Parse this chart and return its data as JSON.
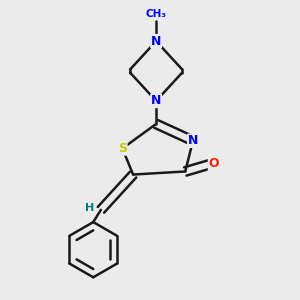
{
  "background_color": "#ebebeb",
  "bond_color": "#1a1a1a",
  "bond_width": 1.8,
  "atom_colors": {
    "N": "#0000ff",
    "S": "#cccc00",
    "O": "#ff2200",
    "H": "#008080",
    "C": "#1a1a1a"
  }
}
